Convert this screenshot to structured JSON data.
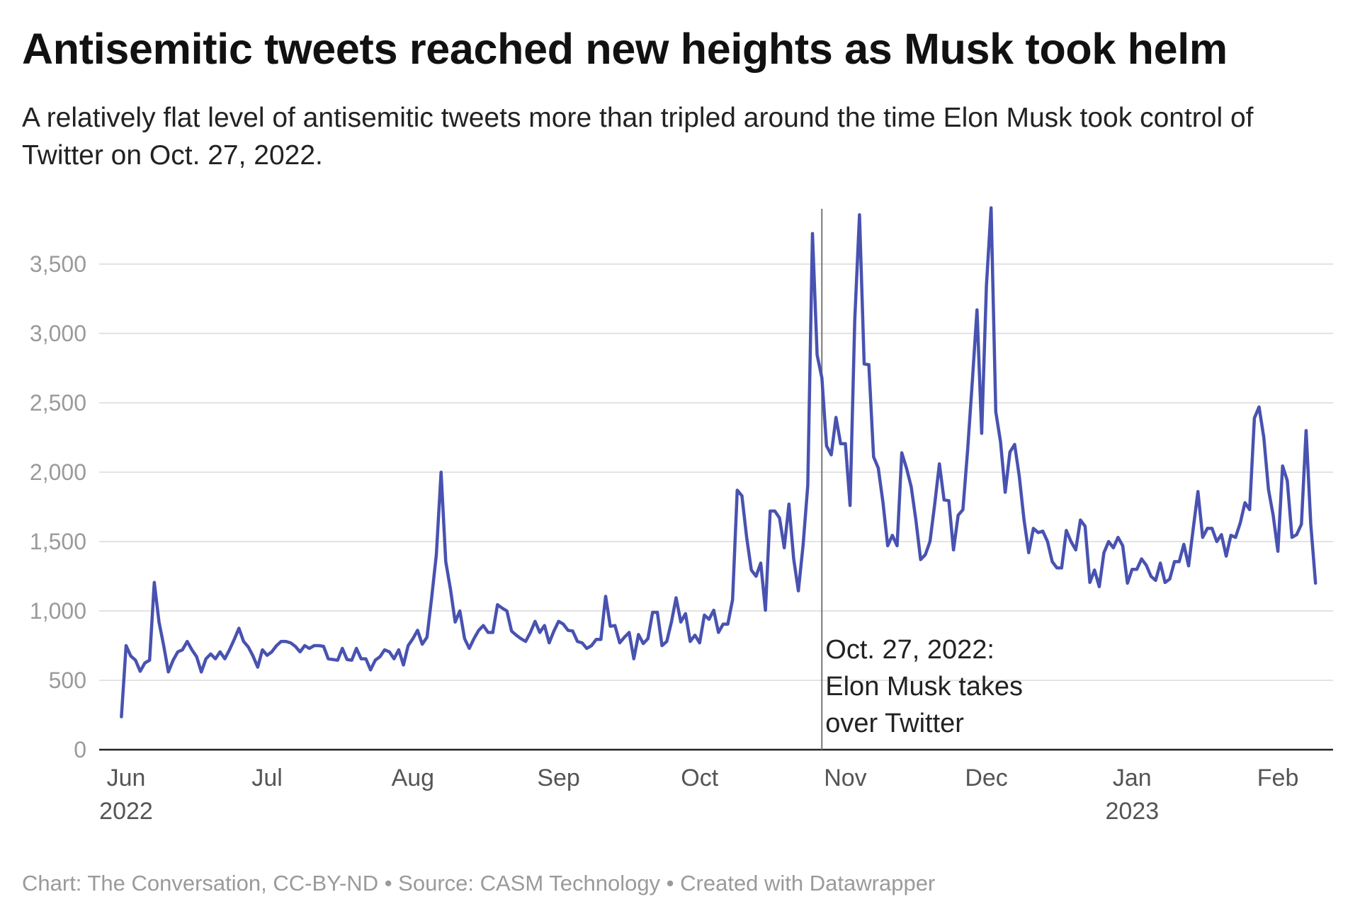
{
  "title": "Antisemitic tweets reached new heights as Musk took helm",
  "subtitle": "A relatively flat level of antisemitic tweets more than tripled around the time Elon Musk took control of Twitter on Oct. 27, 2022.",
  "footer": "Chart: The Conversation, CC-BY-ND • Source: CASM Technology • Created with Datawrapper",
  "chart_data": {
    "type": "line",
    "title": "Antisemitic tweets reached new heights as Musk took helm",
    "xlabel": "",
    "ylabel": "",
    "ylim": [
      0,
      3900
    ],
    "yticks": [
      0,
      500,
      1000,
      1500,
      2000,
      2500,
      3000,
      3500
    ],
    "ytick_labels": [
      "0",
      "500",
      "1,000",
      "1,500",
      "2,000",
      "2,500",
      "3,000",
      "3,500"
    ],
    "xticks": [
      {
        "date": "2022-06-01",
        "label": "Jun",
        "year": "2022"
      },
      {
        "date": "2022-07-01",
        "label": "Jul",
        "year": ""
      },
      {
        "date": "2022-08-01",
        "label": "Aug",
        "year": ""
      },
      {
        "date": "2022-09-01",
        "label": "Sep",
        "year": ""
      },
      {
        "date": "2022-10-01",
        "label": "Oct",
        "year": ""
      },
      {
        "date": "2022-11-01",
        "label": "Nov",
        "year": ""
      },
      {
        "date": "2022-12-01",
        "label": "Dec",
        "year": ""
      },
      {
        "date": "2023-01-01",
        "label": "Jan",
        "year": "2023"
      },
      {
        "date": "2023-02-01",
        "label": "Feb",
        "year": ""
      }
    ],
    "grid": true,
    "line_color": "#4852b0",
    "x_start": "2022-05-31",
    "x_interval": "daily",
    "values": [
      237,
      750,
      675,
      645,
      565,
      625,
      645,
      1205,
      920,
      750,
      560,
      645,
      705,
      720,
      780,
      720,
      670,
      560,
      655,
      690,
      655,
      705,
      655,
      720,
      795,
      875,
      780,
      740,
      675,
      595,
      720,
      680,
      705,
      750,
      780,
      780,
      770,
      745,
      705,
      750,
      730,
      750,
      750,
      745,
      655,
      650,
      645,
      730,
      650,
      645,
      730,
      655,
      655,
      575,
      645,
      670,
      720,
      705,
      655,
      720,
      610,
      750,
      800,
      860,
      760,
      810,
      1095,
      1405,
      2000,
      1355,
      1155,
      920,
      1000,
      800,
      730,
      800,
      860,
      895,
      845,
      845,
      1045,
      1020,
      1000,
      855,
      825,
      800,
      780,
      845,
      925,
      845,
      895,
      770,
      855,
      925,
      905,
      860,
      855,
      780,
      770,
      730,
      750,
      795,
      795,
      1105,
      890,
      895,
      770,
      810,
      845,
      655,
      830,
      765,
      800,
      990,
      990,
      750,
      780,
      920,
      1095,
      920,
      980,
      780,
      825,
      770,
      970,
      940,
      1005,
      845,
      905,
      905,
      1080,
      1870,
      1830,
      1530,
      1295,
      1250,
      1345,
      1005,
      1720,
      1720,
      1670,
      1455,
      1770,
      1375,
      1145,
      1470,
      1905,
      3720,
      2845,
      2680,
      2190,
      2125,
      2395,
      2205,
      2205,
      1760,
      3095,
      3855,
      2780,
      2775,
      2110,
      2030,
      1780,
      1470,
      1545,
      1470,
      2140,
      2030,
      1895,
      1655,
      1370,
      1405,
      1500,
      1770,
      2060,
      1800,
      1795,
      1440,
      1690,
      1730,
      2155,
      2655,
      3170,
      2280,
      3345,
      3905,
      2435,
      2220,
      1855,
      2145,
      2200,
      1970,
      1655,
      1420,
      1595,
      1565,
      1575,
      1500,
      1355,
      1310,
      1310,
      1580,
      1500,
      1440,
      1655,
      1610,
      1205,
      1295,
      1175,
      1420,
      1500,
      1455,
      1530,
      1470,
      1200,
      1300,
      1300,
      1375,
      1330,
      1250,
      1220,
      1345,
      1205,
      1230,
      1355,
      1355,
      1480,
      1325,
      1595,
      1860,
      1530,
      1595,
      1595,
      1500,
      1550,
      1395,
      1545,
      1530,
      1635,
      1780,
      1730,
      2390,
      2470,
      2250,
      1875,
      1690,
      1430,
      2045,
      1940,
      1530,
      1550,
      1625,
      2300,
      1625,
      1200
    ],
    "annotation": {
      "date": "2022-10-27",
      "lines": [
        "Oct. 27, 2022:",
        "Elon Musk takes",
        "over Twitter"
      ]
    }
  }
}
